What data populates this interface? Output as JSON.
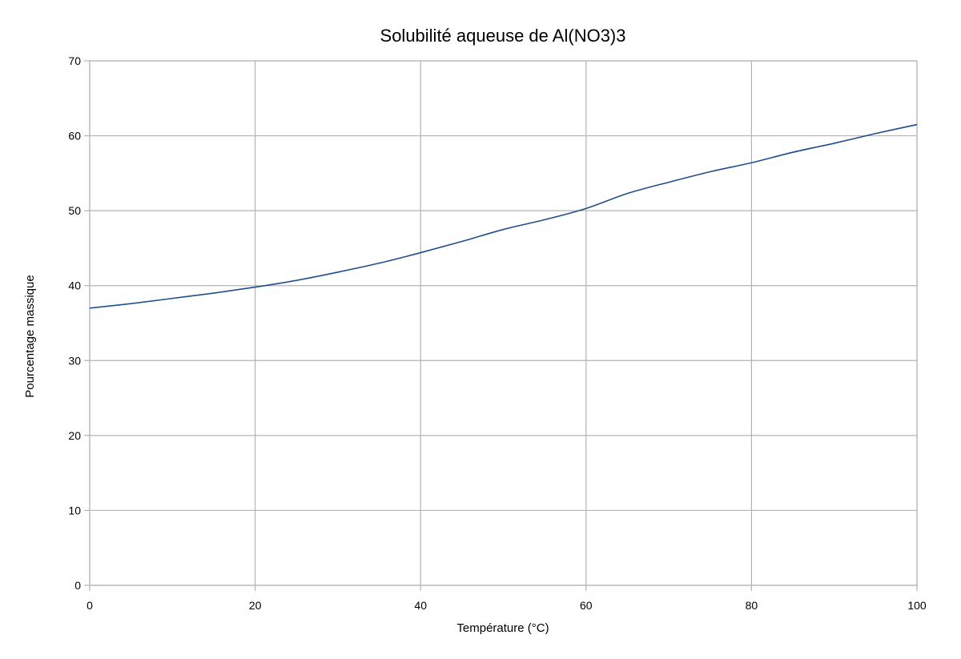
{
  "chart_data": {
    "type": "line",
    "title": "Solubilité aqueuse de Al(NO3)3",
    "xlabel": "Température  (°C)",
    "ylabel": "Pourcentage  massique",
    "xlim": [
      0,
      100
    ],
    "ylim": [
      0,
      70
    ],
    "x_ticks": [
      0,
      20,
      40,
      60,
      80,
      100
    ],
    "y_ticks": [
      0,
      10,
      20,
      30,
      40,
      50,
      60,
      70
    ],
    "x_tick_labels": [
      "0",
      "20",
      "40",
      "60",
      "80",
      "100"
    ],
    "y_tick_labels": [
      "0",
      "10",
      "20",
      "30",
      "40",
      "50",
      "60",
      "70"
    ],
    "grid": true,
    "legend": "none",
    "colors": {
      "line": "#1f4e8c",
      "grid": "#b3b3b3",
      "axis": "#b3b3b3"
    },
    "series": [
      {
        "x": [
          0,
          5,
          10,
          15,
          20,
          25,
          30,
          35,
          40,
          45,
          50,
          55,
          60,
          65,
          70,
          75,
          80,
          85,
          90,
          95,
          100
        ],
        "y": [
          37.0,
          37.6,
          38.3,
          39.0,
          39.8,
          40.7,
          41.8,
          43.0,
          44.4,
          45.9,
          47.5,
          48.8,
          50.3,
          52.3,
          53.8,
          55.2,
          56.4,
          57.8,
          59.0,
          60.3,
          61.5
        ]
      }
    ]
  }
}
